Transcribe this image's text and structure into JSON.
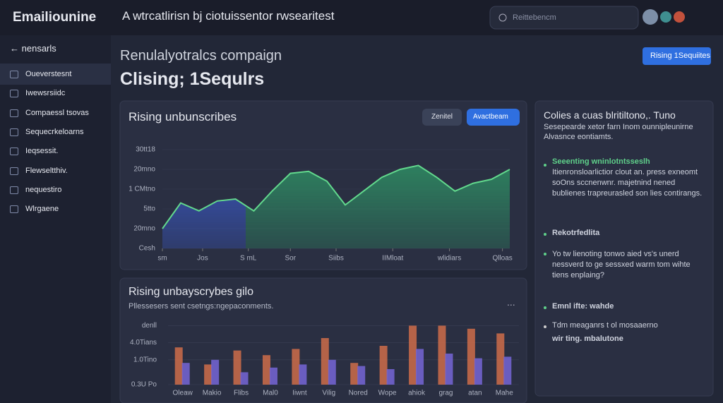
{
  "header": {
    "app_name": "Emailiounine",
    "title": "A wtrcatlirisn bj ciotuissentor rwsearitest",
    "search_placeholder": "Reittebencm"
  },
  "sidebar": {
    "back": "nensarls",
    "items": [
      "Oueverstesnt",
      "Iwewsrsiidc",
      "Compaessl tsovas",
      "Sequecrkeloarns",
      "Ieqsessit.",
      "Flewseltthiv.",
      "nequestiro",
      "Wlrgaene"
    ]
  },
  "page": {
    "subtitle": "Renulalyotralcs compaign",
    "title": "Clising; 1Sequlrs",
    "button": "Rising 1Sequiites"
  },
  "area_chart": {
    "type": "area",
    "title": "Rising unbunscribes",
    "buttons": [
      "Zenitel",
      "Avactbeam"
    ],
    "x": [
      0,
      1,
      2,
      3,
      4,
      5,
      6,
      7,
      8,
      9,
      10,
      11,
      12,
      13,
      14,
      15,
      16,
      17,
      18,
      19
    ],
    "values": [
      1.0,
      2.3,
      1.9,
      2.4,
      2.5,
      1.9,
      2.9,
      3.8,
      3.9,
      3.4,
      2.2,
      2.9,
      3.6,
      4.0,
      4.2,
      3.6,
      2.9,
      3.3,
      3.5,
      4.0
    ],
    "xlim": [
      0,
      19
    ],
    "xticks": [
      {
        "value": 0,
        "label": "sm"
      },
      {
        "value": 2.2,
        "label": "Jos"
      },
      {
        "value": 4.7,
        "label": "S mL"
      },
      {
        "value": 7,
        "label": "Sor"
      },
      {
        "value": 9.5,
        "label": "Siibs"
      },
      {
        "value": 12.6,
        "label": "IIMloat"
      },
      {
        "value": 15.7,
        "label": "wlidiars"
      },
      {
        "value": 18.6,
        "label": "Qlloas"
      }
    ],
    "ylim": [
      0,
      5
    ],
    "yticks": [
      {
        "value": 0,
        "label": "Cesh"
      },
      {
        "value": 1,
        "label": "20mno"
      },
      {
        "value": 2,
        "label": "5tto"
      },
      {
        "value": 3,
        "label": "1 CMtno"
      },
      {
        "value": 4,
        "label": "20mno"
      },
      {
        "value": 5,
        "label": "30tt18"
      }
    ],
    "colors": [
      "#3d5fd8",
      "#2f9a68"
    ],
    "line_color": "#62d98d"
  },
  "bar_chart": {
    "type": "bar",
    "title": "Rising unbayscrybes gilo",
    "subtitle": "Pllessesers sent csetngs:ngepaconments.",
    "menu": "...",
    "categories": [
      "Oleaw",
      "Makio",
      "Flibs",
      "Mal0",
      "Iiwnt",
      "Vilig",
      "Nored",
      "Wope",
      "ahiok",
      "grag",
      "atan",
      "Mahe"
    ],
    "series": [
      {
        "color": "#d8714a",
        "values": [
          2.4,
          1.3,
          2.2,
          1.9,
          2.3,
          3.0,
          1.4,
          2.5,
          3.8,
          3.8,
          3.6,
          3.3
        ]
      },
      {
        "color": "#7565d6",
        "values": [
          1.4,
          1.6,
          0.8,
          1.1,
          1.3,
          1.6,
          1.2,
          1.0,
          2.3,
          2.0,
          1.7,
          1.8
        ]
      }
    ],
    "ylim": [
      0,
      4
    ],
    "yticks": [
      {
        "value": 0,
        "label": "0.3U Po"
      },
      {
        "value": 1.6,
        "label": "1.0Tino"
      },
      {
        "value": 2.7,
        "label": "4.0Tians"
      },
      {
        "value": 3.8,
        "label": "denll"
      }
    ]
  },
  "side_panel": {
    "title": "Colies a cuas blritiltono,. Tuno",
    "description": "Sesepearde xetor farn Inom ounnipleunirne Alvasnce eontiamts.",
    "items": [
      {
        "heading": "Seeenting wninlotntsseslh",
        "text": "Itienronsloarlictior clout an. press exneomt soOns sccnenwnr. majetnind nened bublienes trapreurasled son lies contirangs."
      },
      {
        "heading": "Rekotrfedlita"
      },
      {
        "text": "Yo tw lienoting tonwo aied vs's unerd nessverd to ge sessxed warm tom wihte tiens enplaing?"
      },
      {
        "heading": "Emnl ifte: wahde"
      },
      {
        "text": "Tdm meaganrs t ol mosaaerno",
        "heading": "wir ting. mbalutone"
      }
    ]
  }
}
